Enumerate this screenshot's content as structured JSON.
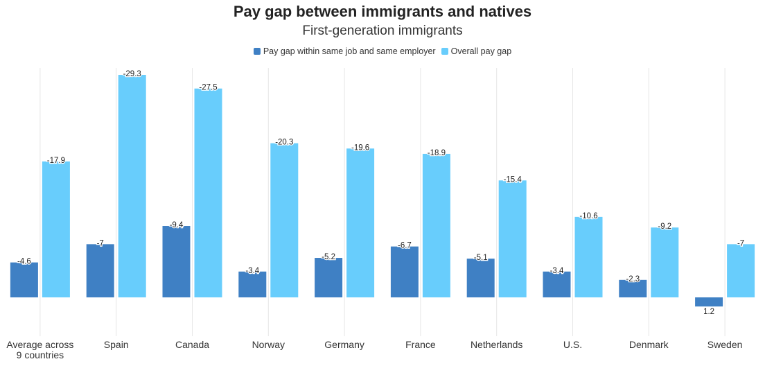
{
  "title": "Pay gap between immigrants and natives",
  "subtitle": "First-generation immigrants",
  "legend": [
    {
      "label": "Pay gap within same job and same employer",
      "color": "#3f80c4"
    },
    {
      "label": "Overall pay gap",
      "color": "#68cdfc"
    }
  ],
  "chart_data": {
    "type": "bar",
    "title": "Pay gap between immigrants and natives",
    "subtitle": "First-generation immigrants",
    "categories": [
      "Average across\n9 countries",
      "Spain",
      "Canada",
      "Norway",
      "Germany",
      "France",
      "Netherlands",
      "U.S.",
      "Denmark",
      "Sweden"
    ],
    "series": [
      {
        "name": "Pay gap within same job and same employer",
        "color": "#3f80c4",
        "values": [
          -4.6,
          -7,
          -9.4,
          -3.4,
          -5.2,
          -6.7,
          -5.1,
          -3.4,
          -2.3,
          1.2
        ]
      },
      {
        "name": "Overall pay gap",
        "color": "#68cdfc",
        "values": [
          -17.9,
          -29.3,
          -27.5,
          -20.3,
          -19.6,
          -18.9,
          -15.4,
          -10.6,
          -9.2,
          -7
        ]
      }
    ],
    "value_direction": "reversed",
    "grid": true,
    "legend_position": "top-center"
  }
}
